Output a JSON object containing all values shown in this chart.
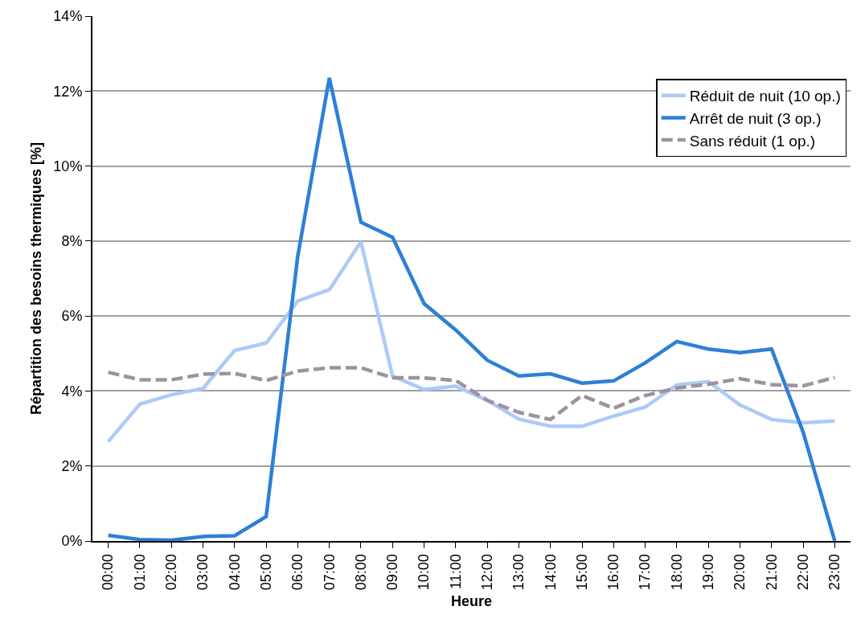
{
  "chart_data": {
    "type": "line",
    "xlabel": "Heure",
    "ylabel": "Répartition des besoins thermiques [%]",
    "categories": [
      "00:00",
      "01:00",
      "02:00",
      "03:00",
      "04:00",
      "05:00",
      "06:00",
      "07:00",
      "08:00",
      "09:00",
      "10:00",
      "11:00",
      "12:00",
      "13:00",
      "14:00",
      "15:00",
      "16:00",
      "17:00",
      "18:00",
      "19:00",
      "20:00",
      "21:00",
      "22:00",
      "23:00"
    ],
    "series": [
      {
        "name": "Réduit de nuit (10 op.)",
        "color": "#adcaf7",
        "line_style": "solid",
        "values": [
          2.65,
          3.65,
          3.9,
          4.07,
          5.08,
          5.28,
          6.4,
          6.7,
          7.98,
          4.4,
          4.04,
          4.13,
          3.75,
          3.25,
          3.06,
          3.06,
          3.33,
          3.57,
          4.16,
          4.25,
          3.63,
          3.24,
          3.15,
          3.2
        ]
      },
      {
        "name": "Arrêt de nuit (3 op.)",
        "color": "#2e7fd6",
        "line_style": "solid",
        "values": [
          0.15,
          0.04,
          0.02,
          0.12,
          0.14,
          0.65,
          7.6,
          12.35,
          8.5,
          8.1,
          6.33,
          5.63,
          4.82,
          4.4,
          4.46,
          4.21,
          4.27,
          4.75,
          5.32,
          5.12,
          5.02,
          5.12,
          2.9,
          0
        ]
      },
      {
        "name": "Sans réduit (1 op.)",
        "color": "#9e92a0",
        "line_style": "dashed",
        "values": [
          4.5,
          4.3,
          4.3,
          4.45,
          4.47,
          4.28,
          4.53,
          4.62,
          4.62,
          4.35,
          4.35,
          4.28,
          3.75,
          3.43,
          3.24,
          3.88,
          3.54,
          3.88,
          4.08,
          4.18,
          4.33,
          4.17,
          4.14,
          4.36
        ]
      }
    ],
    "ylim": [
      0,
      14
    ],
    "yticks": [
      {
        "value": 0,
        "label": "0%"
      },
      {
        "value": 2,
        "label": "2%"
      },
      {
        "value": 4,
        "label": "4%"
      },
      {
        "value": 6,
        "label": "6%"
      },
      {
        "value": 8,
        "label": "8%"
      },
      {
        "value": 10,
        "label": "10%"
      },
      {
        "value": 12,
        "label": "12%"
      },
      {
        "value": 14,
        "label": "14%"
      }
    ],
    "grid": "y",
    "legend": "top right",
    "marker": "none"
  }
}
